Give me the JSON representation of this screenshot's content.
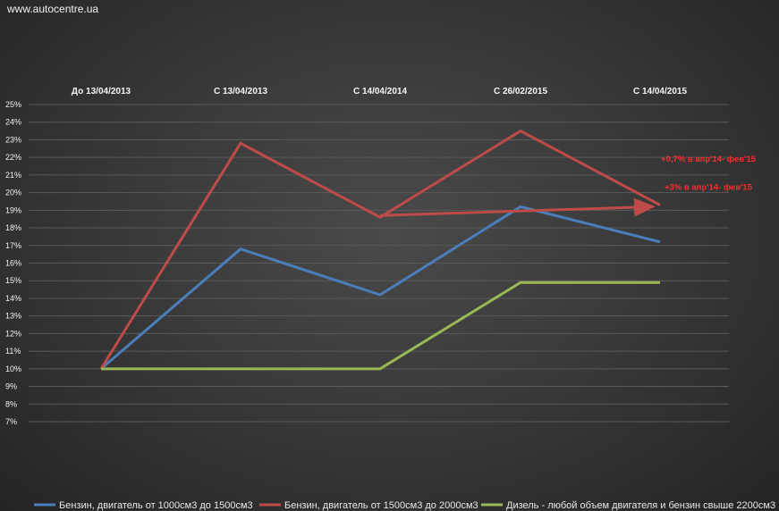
{
  "watermark": "www.autocentre.ua",
  "colors": {
    "series1": "#4a7ebb",
    "series2": "#be4b48",
    "series3": "#98b954",
    "annotation": "#ff2a2a",
    "grid": "#5a5a5a"
  },
  "chart_data": {
    "type": "line",
    "title": "",
    "xlabel": "",
    "ylabel": "",
    "categories": [
      "До 13/04/2013",
      "С 13/04/2013",
      "С 14/04/2014",
      "С 26/02/2015",
      "С 14/04/2015"
    ],
    "ylim": [
      7,
      25
    ],
    "yticks": [
      "7%",
      "8%",
      "9%",
      "10%",
      "11%",
      "12%",
      "13%",
      "14%",
      "15%",
      "16%",
      "17%",
      "18%",
      "19%",
      "20%",
      "21%",
      "22%",
      "23%",
      "24%",
      "25%"
    ],
    "grid": true,
    "legend_position": "bottom",
    "series": [
      {
        "name": "Бензин, двигатель от 1000см3  до 1500см3",
        "values": [
          10,
          16.8,
          14.2,
          19.2,
          17.2
        ]
      },
      {
        "name": "Бензин, двигатель от 1500см3  до 2000см3",
        "values": [
          10,
          22.8,
          18.6,
          23.5,
          19.3
        ]
      },
      {
        "name": "Дизель - любой объем двигателя и бензин свыше 2200см3",
        "values": [
          10,
          10,
          10,
          14.9,
          14.9
        ]
      }
    ],
    "annotations": [
      {
        "text": "+0,7% в апр'14- фев'15",
        "y": 21.9
      },
      {
        "text": "+3% в апр'14- фев'15",
        "y": 20.3
      }
    ],
    "trend_arrow": {
      "from_category": 2,
      "from_value": 18.7,
      "to_category": 4,
      "to_value": 19.2
    }
  }
}
